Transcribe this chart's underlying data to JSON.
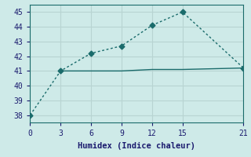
{
  "line1_x": [
    0,
    3,
    6,
    9,
    12,
    15,
    21
  ],
  "line1_y": [
    38,
    41,
    42.2,
    42.7,
    44.1,
    45,
    41.2
  ],
  "line2_x": [
    3,
    6,
    9,
    12,
    15,
    21
  ],
  "line2_y": [
    41,
    41,
    41,
    41.1,
    41.1,
    41.2
  ],
  "line_color": "#1a6b6b",
  "bg_color": "#ceeae8",
  "grid_color_major": "#b8d4d2",
  "grid_color_minor": "#daecea",
  "xlabel": "Humidex (Indice chaleur)",
  "xlim": [
    0,
    21
  ],
  "ylim": [
    37.5,
    45.5
  ],
  "xticks": [
    0,
    3,
    6,
    9,
    12,
    15,
    21
  ],
  "yticks": [
    38,
    39,
    40,
    41,
    42,
    43,
    44,
    45
  ],
  "font_color": "#1a1a6e",
  "markersize": 3.5
}
